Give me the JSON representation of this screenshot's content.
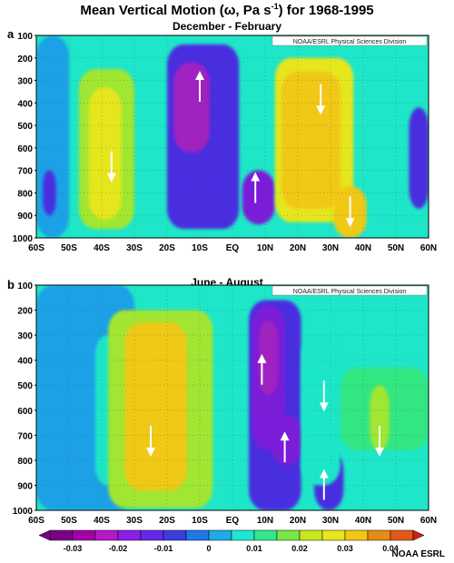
{
  "title_main": "Mean Vertical Motion (",
  "title_omega": "ω",
  "title_unit": ", Pa s",
  "title_exp": "-1",
  "title_end": ") for 1968-1995",
  "credit": "NOAA/ESRL Physical Sciences Division",
  "footer": "NOAA ESRL",
  "colors": {
    "palette": [
      "#8b008b",
      "#a020c0",
      "#7a1ed8",
      "#4a2ee0",
      "#1e64e0",
      "#1ea0e6",
      "#1ee6c8",
      "#32e682",
      "#a0e632",
      "#e6e61e",
      "#f0c814",
      "#e87814",
      "#d02010"
    ],
    "arrow": "#ffffff"
  },
  "chart_data": [
    {
      "id": "a",
      "type": "heatmap",
      "subtitle": "December - February",
      "xlabel_ticks": [
        "60S",
        "50S",
        "40S",
        "30S",
        "20S",
        "10S",
        "EQ",
        "10N",
        "20N",
        "30N",
        "40N",
        "50N",
        "60N"
      ],
      "x_range": [
        -60,
        60
      ],
      "ylabel_ticks": [
        "100",
        "200",
        "300",
        "400",
        "500",
        "600",
        "700",
        "800",
        "900",
        "1000"
      ],
      "y_range": [
        100,
        1000
      ],
      "units": "Pa s-1",
      "cells": [
        {
          "x": [
            -60,
            -50
          ],
          "y": [
            100,
            1000
          ],
          "v": 0.0
        },
        {
          "x": [
            -58,
            -54
          ],
          "y": [
            700,
            900
          ],
          "v": -0.012
        },
        {
          "x": [
            -47,
            -30
          ],
          "y": [
            250,
            960
          ],
          "v": 0.012
        },
        {
          "x": [
            -44,
            -34
          ],
          "y": [
            330,
            920
          ],
          "v": 0.02
        },
        {
          "x": [
            -20,
            2
          ],
          "y": [
            140,
            960
          ],
          "v": -0.01
        },
        {
          "x": [
            -18,
            -7
          ],
          "y": [
            220,
            620
          ],
          "v": -0.022
        },
        {
          "x": [
            3,
            13
          ],
          "y": [
            700,
            940
          ],
          "v": -0.018
        },
        {
          "x": [
            13,
            37
          ],
          "y": [
            200,
            930
          ],
          "v": 0.018
        },
        {
          "x": [
            15,
            33
          ],
          "y": [
            260,
            870
          ],
          "v": 0.025
        },
        {
          "x": [
            31,
            41
          ],
          "y": [
            770,
            1000
          ],
          "v": 0.028
        },
        {
          "x": [
            54,
            60
          ],
          "y": [
            420,
            870
          ],
          "v": -0.01
        }
      ],
      "arrows": [
        {
          "x": -37,
          "p": 680,
          "dir": "down"
        },
        {
          "x": -10,
          "p": 330,
          "dir": "up"
        },
        {
          "x": 7,
          "p": 780,
          "dir": "up"
        },
        {
          "x": 27,
          "p": 380,
          "dir": "down"
        },
        {
          "x": 36,
          "p": 880,
          "dir": "down"
        }
      ]
    },
    {
      "id": "b",
      "type": "heatmap",
      "subtitle": "June - August",
      "xlabel_ticks": [
        "60S",
        "50S",
        "40S",
        "30S",
        "20S",
        "10S",
        "EQ",
        "10N",
        "20N",
        "30N",
        "40N",
        "50N",
        "60N"
      ],
      "x_range": [
        -60,
        60
      ],
      "ylabel_ticks": [
        "100",
        "200",
        "300",
        "400",
        "500",
        "600",
        "700",
        "800",
        "900",
        "1000"
      ],
      "y_range": [
        100,
        1000
      ],
      "units": "Pa s-1",
      "cells": [
        {
          "x": [
            -60,
            -30
          ],
          "y": [
            100,
            1000
          ],
          "v": 0.0
        },
        {
          "x": [
            -42,
            -35
          ],
          "y": [
            300,
            900
          ],
          "v": 0.005
        },
        {
          "x": [
            -38,
            -6
          ],
          "y": [
            200,
            990
          ],
          "v": 0.012
        },
        {
          "x": [
            -33,
            -14
          ],
          "y": [
            250,
            920
          ],
          "v": 0.022
        },
        {
          "x": [
            -30,
            -16
          ],
          "y": [
            300,
            880
          ],
          "v": 0.027
        },
        {
          "x": [
            5,
            21
          ],
          "y": [
            160,
            1000
          ],
          "v": -0.01
        },
        {
          "x": [
            6,
            16
          ],
          "y": [
            180,
            760
          ],
          "v": -0.02
        },
        {
          "x": [
            8,
            14
          ],
          "y": [
            240,
            540
          ],
          "v": -0.03
        },
        {
          "x": [
            12,
            21
          ],
          "y": [
            620,
            820
          ],
          "v": -0.02
        },
        {
          "x": [
            25,
            34
          ],
          "y": [
            760,
            1000
          ],
          "v": -0.012
        },
        {
          "x": [
            21,
            33
          ],
          "y": [
            300,
            900
          ],
          "v": 0.006
        },
        {
          "x": [
            33,
            60
          ],
          "y": [
            430,
            760
          ],
          "v": 0.008
        },
        {
          "x": [
            42,
            48
          ],
          "y": [
            500,
            760
          ],
          "v": 0.012
        }
      ],
      "arrows": [
        {
          "x": 9,
          "p": 440,
          "dir": "up"
        },
        {
          "x": 16,
          "p": 750,
          "dir": "up"
        },
        {
          "x": 28,
          "p": 900,
          "dir": "up"
        },
        {
          "x": 28,
          "p": 540,
          "dir": "down"
        },
        {
          "x": 45,
          "p": 720,
          "dir": "down"
        },
        {
          "x": -25,
          "p": 720,
          "dir": "down"
        }
      ]
    }
  ],
  "colorbar": {
    "ticks": [
      "-0.03",
      "-0.02",
      "-0.01",
      "0",
      "0.01",
      "0.02",
      "0.03",
      "0.04"
    ],
    "levels": [
      -0.035,
      -0.03,
      -0.025,
      -0.02,
      -0.015,
      -0.01,
      -0.005,
      0,
      0.005,
      0.01,
      0.015,
      0.02,
      0.025,
      0.03,
      0.035,
      0.04,
      0.045
    ]
  }
}
